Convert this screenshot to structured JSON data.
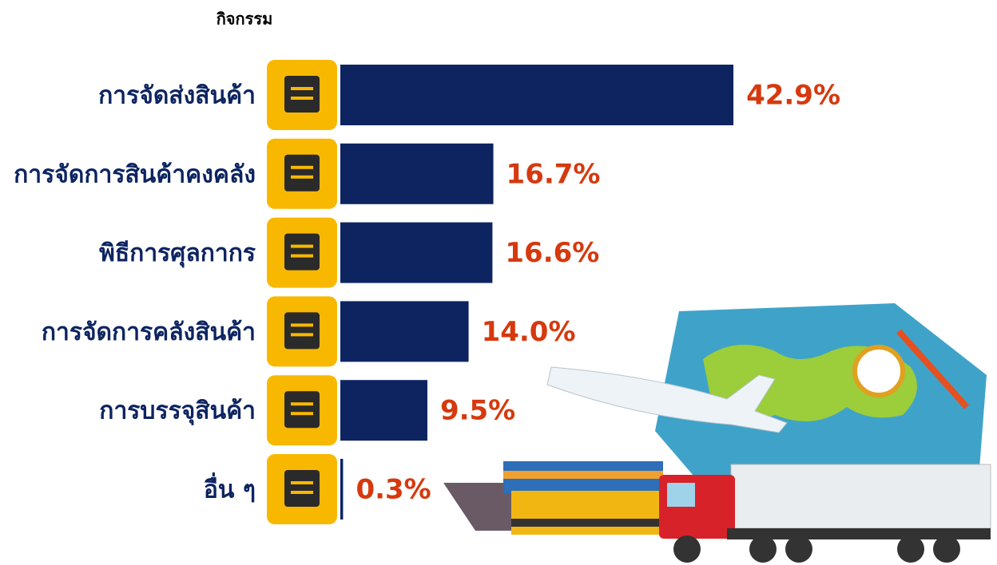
{
  "chart_data": {
    "type": "bar",
    "orientation": "horizontal",
    "title": "กิจกรรม",
    "categories": [
      "การจัดส่งสินค้า",
      "การจัดการสินค้าคงคลัง",
      "พิธีการศุลกากร",
      "การจัดการคลังสินค้า",
      "การบรรจุสินค้า",
      "อื่น ๆ"
    ],
    "values": [
      42.9,
      16.7,
      16.6,
      14.0,
      9.5,
      0.3
    ],
    "value_labels": [
      "42.9%",
      "16.7%",
      "16.6%",
      "14.0%",
      "9.5%",
      "0.3%"
    ],
    "color": "#0d2461",
    "label_color": "#d6390d",
    "category_color": "#0d2461"
  }
}
